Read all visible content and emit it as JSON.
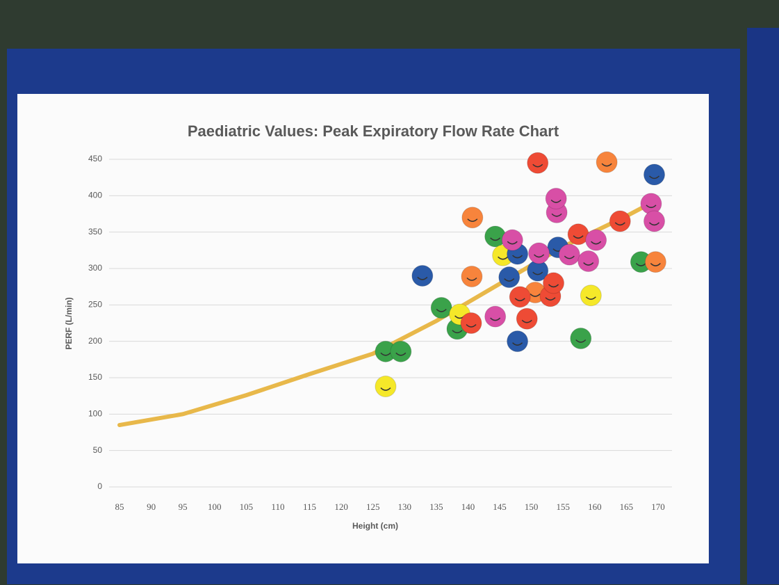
{
  "chart_data": {
    "type": "scatter",
    "title": "Paediatric Values: Peak Expiratory Flow Rate Chart",
    "x_label": "Height (cm)",
    "y_label": "PERF (L/min)",
    "xlim": [
      85,
      170
    ],
    "ylim": [
      0,
      450
    ],
    "xticks": [
      85,
      90,
      95,
      100,
      105,
      110,
      115,
      120,
      125,
      130,
      135,
      140,
      145,
      150,
      155,
      160,
      165,
      170
    ],
    "yticks": [
      0,
      50,
      100,
      150,
      200,
      250,
      300,
      350,
      400,
      450
    ],
    "grid": true,
    "line": {
      "color": "#e8b84a",
      "x": [
        85,
        95,
        105,
        115,
        125,
        135,
        145,
        155,
        165,
        170
      ],
      "y": [
        85,
        100,
        126,
        155,
        183,
        228,
        279,
        330,
        372,
        395
      ]
    },
    "series": [
      {
        "color": "#3aa24a",
        "x": [
          127,
          129.4,
          135.8,
          138.3,
          144.3,
          157.8,
          167.3
        ],
        "y": [
          186,
          186,
          246,
          217,
          344,
          204,
          309
        ]
      },
      {
        "color": "#f5e829",
        "x": [
          127,
          138.7,
          145.5,
          159.4
        ],
        "y": [
          138,
          237,
          318,
          263
        ]
      },
      {
        "color": "#2a5aa8",
        "x": [
          132.8,
          146.5,
          147.8,
          147.8,
          151,
          154.2,
          169.4
        ],
        "y": [
          290,
          288,
          320,
          200,
          297,
          329,
          429
        ]
      },
      {
        "color": "#f7843c",
        "x": [
          140.7,
          140.6,
          150.6,
          161.9,
          169.6
        ],
        "y": [
          370,
          289,
          267,
          446,
          309
        ]
      },
      {
        "color": "#ee4b35",
        "x": [
          140.5,
          149.3,
          148.2,
          151,
          153,
          153.5,
          157.4,
          164
        ],
        "y": [
          225,
          231,
          261,
          445,
          262,
          280,
          347,
          365
        ]
      },
      {
        "color": "#d84fa6",
        "x": [
          147,
          144.3,
          151.2,
          154,
          153.9,
          156,
          159,
          160.2,
          168.9,
          169.4
        ],
        "y": [
          339,
          234,
          321,
          377,
          396,
          319,
          310,
          339,
          389,
          365
        ]
      }
    ]
  }
}
